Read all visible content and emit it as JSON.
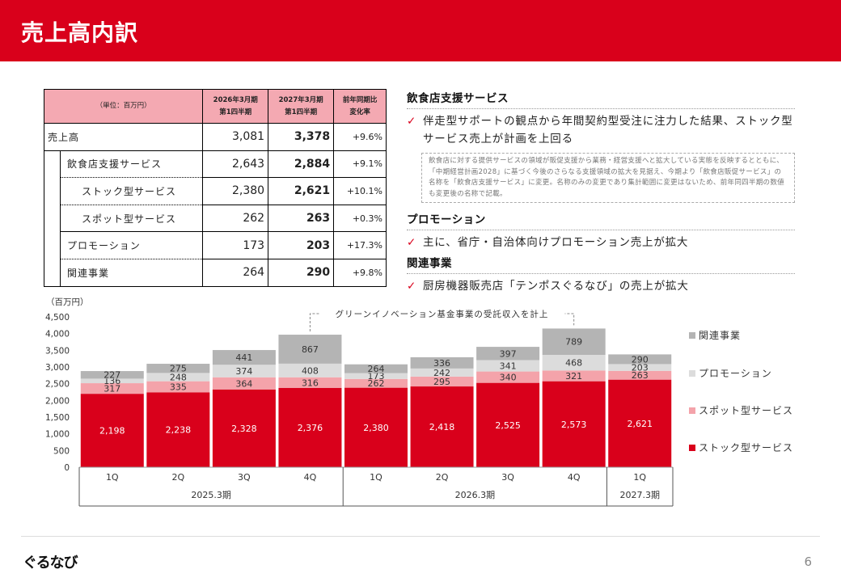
{
  "header": {
    "title": "売上高内訳"
  },
  "table": {
    "unit": "（単位：百万円）",
    "col_prev": [
      "2026年3月期",
      "第1四半期"
    ],
    "col_cur": [
      "2027年3月期",
      "第1四半期"
    ],
    "col_chg": [
      "前年同期比",
      "変化率"
    ],
    "rows": [
      {
        "label": "売上高",
        "prev": "3,081",
        "cur": "3,378",
        "chg": "+9.6%"
      },
      {
        "label": "飲食店支援サービス",
        "prev": "2,643",
        "cur": "2,884",
        "chg": "+9.1%"
      },
      {
        "label": "ストック型サービス",
        "prev": "2,380",
        "cur": "2,621",
        "chg": "+10.1%"
      },
      {
        "label": "スポット型サービス",
        "prev": "262",
        "cur": "263",
        "chg": "+0.3%"
      },
      {
        "label": "プロモーション",
        "prev": "173",
        "cur": "203",
        "chg": "+17.3%"
      },
      {
        "label": "関連事業",
        "prev": "264",
        "cur": "290",
        "chg": "+9.8%"
      }
    ]
  },
  "right": {
    "s1": {
      "title": "飲食店支援サービス",
      "bullet": "伴走型サポートの観点から年間契約型受注に注力した結果、ストック型サービス売上が計画を上回る",
      "note": "飲食店に対する提供サービスの領域が販促支援から業務・経営支援へと拡大している実態を反映するとともに、「中期経営計画2028」に基づく今後のさらなる支援領域の拡大を見据え、今期より「飲食店販促サービス」の名称を「飲食店支援サービス」に変更。名称のみの変更であり集計範囲に変更はないため、前年同四半期の数値も変更後の名称で記載。"
    },
    "s2": {
      "title": "プロモーション",
      "bullet": "主に、省庁・自治体向けプロモーション売上が拡大"
    },
    "s3": {
      "title": "関連事業",
      "bullet": "厨房機器販売店「テンポスぐるなび」の売上が拡大"
    },
    "check": "✓"
  },
  "chart_data": {
    "type": "bar",
    "stacked": true,
    "unit_label": "（百万円）",
    "ylim": [
      0,
      4500
    ],
    "yticks": [
      "0",
      "500",
      "1,000",
      "1,500",
      "2,000",
      "2,500",
      "3,000",
      "3,500",
      "4,000",
      "4,500"
    ],
    "categories": [
      "1Q",
      "2Q",
      "3Q",
      "4Q",
      "1Q",
      "2Q",
      "3Q",
      "4Q",
      "1Q"
    ],
    "period_groups": [
      {
        "label": "2025.3期",
        "count": 4
      },
      {
        "label": "2026.3期",
        "count": 4
      },
      {
        "label": "2027.3期",
        "count": 1
      }
    ],
    "series": [
      {
        "name": "ストック型サービス",
        "color": "#d9001b",
        "values": [
          2198,
          2238,
          2328,
          2376,
          2380,
          2418,
          2525,
          2573,
          2621
        ],
        "labels": [
          "2,198",
          "2,238",
          "2,328",
          "2,376",
          "2,380",
          "2,418",
          "2,525",
          "2,573",
          "2,621"
        ]
      },
      {
        "name": "スポット型サービス",
        "color": "#f4a3aa",
        "values": [
          317,
          335,
          364,
          316,
          262,
          295,
          340,
          321,
          263
        ],
        "labels": [
          "317",
          "335",
          "364",
          "316",
          "262",
          "295",
          "340",
          "321",
          "263"
        ]
      },
      {
        "name": "プロモーション",
        "color": "#dcdcdc",
        "values": [
          136,
          248,
          374,
          408,
          173,
          242,
          341,
          468,
          203
        ],
        "labels": [
          "136",
          "248",
          "374",
          "408",
          "173",
          "242",
          "341",
          "468",
          "203"
        ]
      },
      {
        "name": "関連事業",
        "color": "#b4b4b4",
        "values": [
          227,
          275,
          441,
          867,
          264,
          336,
          397,
          789,
          290
        ],
        "labels": [
          "227",
          "275",
          "441",
          "867",
          "264",
          "336",
          "397",
          "789",
          "290"
        ]
      }
    ],
    "annotation": "グリーンイノベーション基金事業の受託収入を計上",
    "annotation_bars": [
      3,
      7
    ]
  },
  "footer": {
    "logo": "ぐるなび",
    "page": "6"
  }
}
